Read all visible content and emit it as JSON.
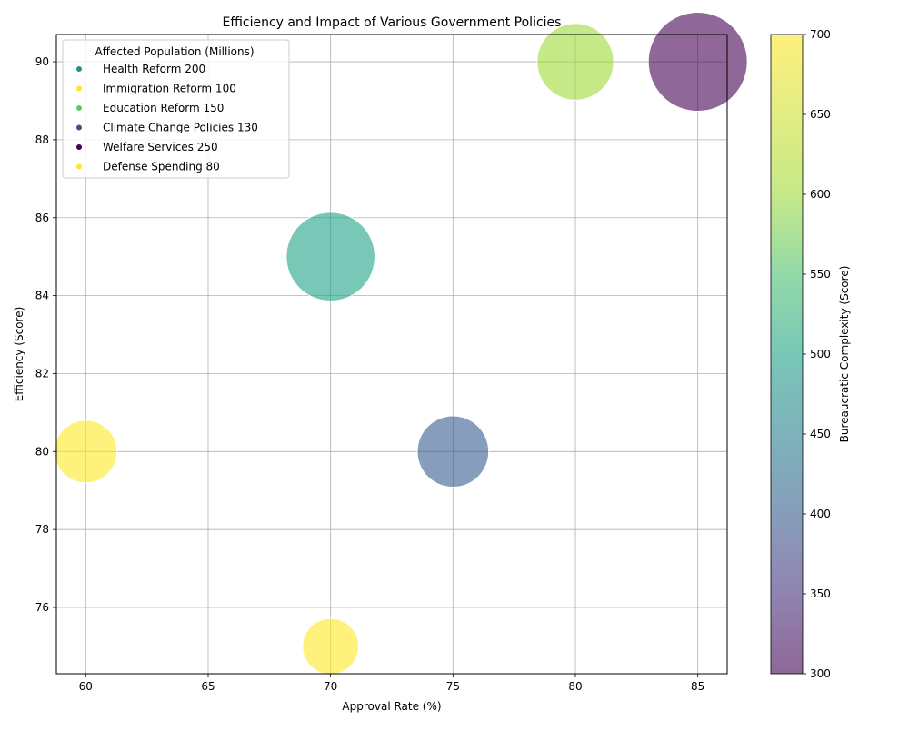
{
  "chart_data": {
    "type": "scatter",
    "title": "Efficiency and Impact of Various Government Policies",
    "xlabel": "Approval Rate (%)",
    "ylabel": "Efficiency (Score)",
    "xlim": [
      58.8,
      86.2
    ],
    "ylim": [
      74.3,
      90.7
    ],
    "xticks": [
      60,
      65,
      70,
      75,
      80,
      85
    ],
    "yticks": [
      76,
      78,
      80,
      82,
      84,
      86,
      88,
      90
    ],
    "grid": true,
    "legend": {
      "title": "Affected Population (Millions)",
      "placement": "top-left",
      "entries": [
        {
          "label": "Health Reform 200",
          "color": "#21918c"
        },
        {
          "label": "Immigration Reform 100",
          "color": "#fde725"
        },
        {
          "label": "Education Reform 150",
          "color": "#5ec962"
        },
        {
          "label": "Climate Change Policies 130",
          "color": "#3b528b"
        },
        {
          "label": "Welfare Services 250",
          "color": "#440154"
        },
        {
          "label": "Defense Spending 80",
          "color": "#fde725"
        }
      ]
    },
    "colorbar": {
      "label": "Bureaucratic Complexity (Score)",
      "min": 300,
      "max": 700,
      "ticks": [
        300,
        350,
        400,
        450,
        500,
        550,
        600,
        650,
        700
      ],
      "colormap": "viridis",
      "alpha": 0.6
    },
    "points": [
      {
        "approval": 70,
        "efficiency": 85,
        "affected_population": 200,
        "complexity": 500
      },
      {
        "approval": 60,
        "efficiency": 80,
        "affected_population": 100,
        "complexity": 700
      },
      {
        "approval": 80,
        "efficiency": 90,
        "affected_population": 150,
        "complexity": 600
      },
      {
        "approval": 75,
        "efficiency": 80,
        "affected_population": 130,
        "complexity": 400
      },
      {
        "approval": 85,
        "efficiency": 90,
        "affected_population": 250,
        "complexity": 300
      },
      {
        "approval": 70,
        "efficiency": 75,
        "affected_population": 80,
        "complexity": 700
      }
    ]
  }
}
